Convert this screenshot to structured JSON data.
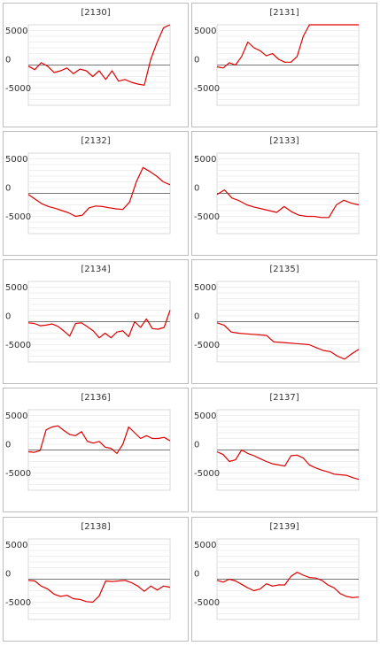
{
  "chart_data": [
    {
      "type": "line",
      "title": "[2130]",
      "yticks": [
        "5000",
        "0",
        "-5000"
      ],
      "ylim": [
        -7000,
        7000
      ],
      "color": "#e00000",
      "y": [
        -200,
        -800,
        400,
        -200,
        -1300,
        -1000,
        -500,
        -1500,
        -700,
        -1000,
        -2000,
        -1000,
        -2500,
        -1000,
        -2800,
        -2500,
        -3000,
        -3300,
        -3500,
        1000,
        4000,
        6500,
        7200
      ]
    },
    {
      "type": "line",
      "title": "[2131]",
      "yticks": [
        "5000",
        "0",
        "-5000"
      ],
      "ylim": [
        -7000,
        7000
      ],
      "color": "#e00000",
      "y": [
        -300,
        -500,
        400,
        0,
        1500,
        4000,
        3000,
        2500,
        1600,
        2000,
        1000,
        500,
        500,
        1500,
        5000,
        7000,
        7000,
        7000,
        7000,
        7000,
        7000,
        7000,
        7000,
        7000
      ]
    },
    {
      "type": "line",
      "title": "[2132]",
      "yticks": [
        "5000",
        "0",
        "-5000"
      ],
      "ylim": [
        -7000,
        7000
      ],
      "color": "#e00000",
      "y": [
        -200,
        -1000,
        -1800,
        -2300,
        -2600,
        -3000,
        -3400,
        -4000,
        -3800,
        -2500,
        -2200,
        -2300,
        -2500,
        -2700,
        -2800,
        -1500,
        2000,
        4500,
        3800,
        3000,
        2000,
        1500
      ]
    },
    {
      "type": "line",
      "title": "[2133]",
      "yticks": [
        "5000",
        "0",
        "-5000"
      ],
      "ylim": [
        -7000,
        7000
      ],
      "color": "#e00000",
      "y": [
        -200,
        600,
        -800,
        -1300,
        -2000,
        -2400,
        -2700,
        -3000,
        -3300,
        -2300,
        -3200,
        -3800,
        -4000,
        -4000,
        -4200,
        -4200,
        -2000,
        -1200,
        -1700,
        -2000
      ]
    },
    {
      "type": "line",
      "title": "[2134]",
      "yticks": [
        "5000",
        "0",
        "-5000"
      ],
      "ylim": [
        -7000,
        7000
      ],
      "color": "#e00000",
      "y": [
        -200,
        -300,
        -700,
        -600,
        -400,
        -800,
        -1600,
        -2500,
        -300,
        -200,
        -900,
        -1600,
        -2800,
        -2000,
        -2800,
        -1800,
        -1600,
        -2600,
        0,
        -1000,
        500,
        -1200,
        -1300,
        -1000,
        2000
      ]
    },
    {
      "type": "line",
      "title": "[2135]",
      "yticks": [
        "5000",
        "0",
        "-5000"
      ],
      "ylim": [
        -7000,
        7000
      ],
      "color": "#e00000",
      "y": [
        -200,
        -600,
        -1800,
        -2000,
        -2100,
        -2200,
        -2300,
        -2400,
        -3500,
        -3600,
        -3700,
        -3800,
        -3900,
        -4000,
        -4500,
        -5000,
        -5200,
        -6000,
        -6500,
        -5600,
        -4800
      ]
    },
    {
      "type": "line",
      "title": "[2136]",
      "yticks": [
        "5000",
        "0",
        "-5000"
      ],
      "ylim": [
        -7000,
        7000
      ],
      "color": "#e00000",
      "y": [
        -300,
        -400,
        -100,
        3500,
        4000,
        4200,
        3400,
        2700,
        2500,
        3200,
        1500,
        1200,
        1500,
        500,
        300,
        -600,
        1000,
        4000,
        3000,
        2000,
        2500,
        2000,
        2000,
        2200,
        1600
      ]
    },
    {
      "type": "line",
      "title": "[2137]",
      "yticks": [
        "5000",
        "0",
        "-5000"
      ],
      "ylim": [
        -7000,
        7000
      ],
      "color": "#e00000",
      "y": [
        -300,
        -800,
        -2000,
        -1700,
        0,
        -600,
        -1000,
        -1500,
        -2000,
        -2400,
        -2600,
        -2800,
        -1000,
        -900,
        -1400,
        -2600,
        -3100,
        -3500,
        -3800,
        -4200,
        -4300,
        -4400,
        -4800,
        -5100
      ]
    },
    {
      "type": "line",
      "title": "[2138]",
      "yticks": [
        "5000",
        "0",
        "-5000"
      ],
      "ylim": [
        -7000,
        7000
      ],
      "color": "#e00000",
      "y": [
        -200,
        -300,
        -1200,
        -1700,
        -2600,
        -3000,
        -2800,
        -3400,
        -3500,
        -3900,
        -4000,
        -2900,
        -300,
        -400,
        -300,
        -200,
        -600,
        -1200,
        -2100,
        -1200,
        -1900,
        -1200,
        -1400
      ]
    },
    {
      "type": "line",
      "title": "[2139]",
      "yticks": [
        "5000",
        "0",
        "-5000"
      ],
      "ylim": [
        -7000,
        7000
      ],
      "color": "#e00000",
      "y": [
        -200,
        -500,
        0,
        -300,
        -900,
        -1500,
        -2000,
        -1700,
        -800,
        -1200,
        -1000,
        -1000,
        500,
        1200,
        700,
        300,
        200,
        -200,
        -1000,
        -1500,
        -2500,
        -3000,
        -3200,
        -3100
      ]
    }
  ]
}
